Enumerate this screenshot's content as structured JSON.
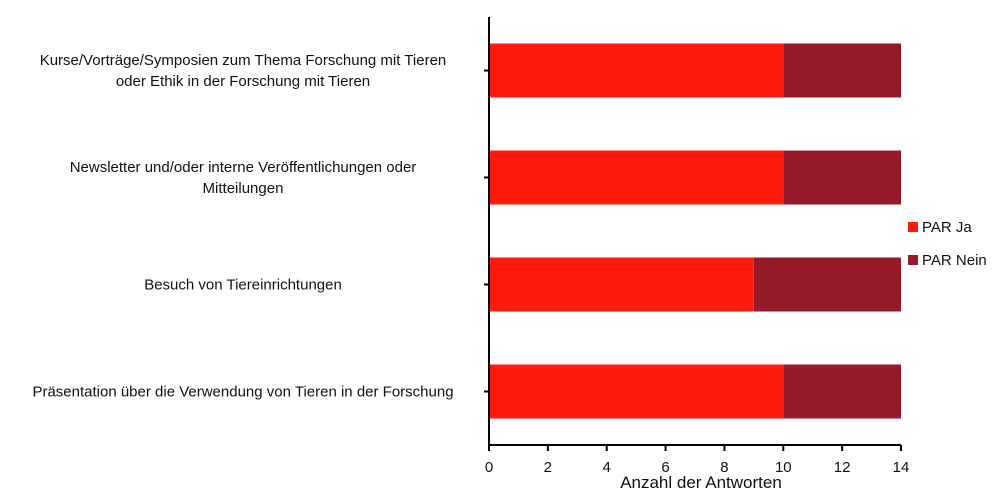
{
  "chart_data": {
    "type": "bar",
    "orientation": "horizontal",
    "stacked": true,
    "categories": [
      [
        "Kurse/Vorträge/Symposien zum Thema Forschung mit Tieren",
        "oder Ethik in der Forschung mit Tieren"
      ],
      [
        "Newsletter und/oder interne Veröffentlichungen oder",
        "Mitteilungen"
      ],
      [
        "Besuch von Tiereinrichtungen"
      ],
      [
        "Präsentation über die Verwendung von Tieren in der Forschung"
      ]
    ],
    "series": [
      {
        "name": "PAR Ja",
        "color": "#FF1A0E",
        "values": [
          10,
          10,
          9,
          10
        ]
      },
      {
        "name": "PAR Nein",
        "color": "#951B2B",
        "values": [
          4,
          4,
          5,
          4
        ]
      }
    ],
    "xlabel": "Anzahl der Antworten",
    "xlim": [
      0,
      14
    ],
    "xticks": [
      0,
      2,
      4,
      6,
      8,
      10,
      12,
      14
    ],
    "grid": false,
    "legend_position": "right"
  }
}
